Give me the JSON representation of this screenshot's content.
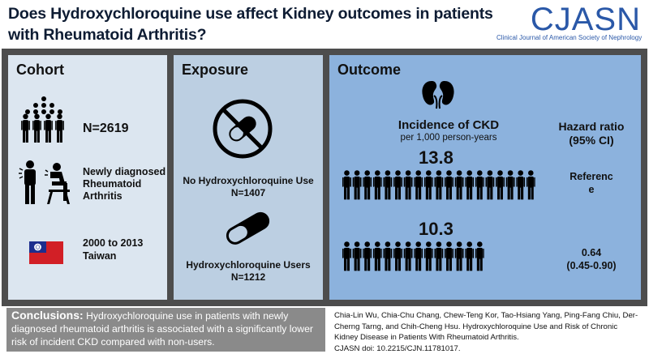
{
  "title": "Does Hydroxychloroquine use affect Kidney outcomes in patients with Rheumatoid Arthritis?",
  "logo": {
    "name": "CJASN",
    "subtitle": "Clinical Journal of American Society of Nephrology"
  },
  "cohort": {
    "heading": "Cohort",
    "n": "N=2619",
    "condition_lines": [
      "Newly diagnosed",
      "Rheumatoid",
      "Arthritis"
    ],
    "years": "2000 to 2013",
    "country": "Taiwan"
  },
  "exposure": {
    "heading": "Exposure",
    "group1": {
      "label": "No Hydroxychloroquine Use",
      "n": "N=1407"
    },
    "group2": {
      "label": "Hydroxychloroquine Users",
      "n": "N=1212"
    }
  },
  "outcome": {
    "heading": "Outcome",
    "incidence_title": "Incidence of CKD",
    "incidence_unit": "per 1,000 person-years",
    "hr_title_line1": "Hazard ratio",
    "hr_title_line2": "(95% CI)",
    "rows": [
      {
        "rate": "13.8",
        "hr_line1": "Referenc",
        "hr_line2": "e",
        "people": 19
      },
      {
        "rate": "10.3",
        "hr_line1": "0.64",
        "hr_line2": "(0.45-0.90)",
        "people": 14.5
      }
    ]
  },
  "conclusions": {
    "label": "Conclusions:",
    "text": "Hydroxychloroquine use in patients with newly diagnosed rheumatoid arthritis is associated with a significantly lower risk of incident CKD compared with non-users."
  },
  "citation": {
    "authors": "Chia-Lin Wu, Chia-Chu Chang, Chew-Teng Kor, Tao-Hsiang Yang, Ping-Fang Chiu, Der-Cherng Tarng, and Chih-Cheng Hsu.",
    "article": "Hydroxychloroquine Use and Risk of Chronic Kidney Disease in Patients With Rheumatoid Arthritis.",
    "doi": "CJASN doi: 10.2215/CJN.11781017."
  },
  "colors": {
    "title": "#0e1c33",
    "logo": "#2a58a8",
    "cohort_panel": "#dce6f0",
    "exposure_panel": "#bccfe2",
    "outcome_panel": "#8cb2dd",
    "frame": "#4d4d4d",
    "conclusion_box": "#8a8a8a",
    "flag_red": "#d21f26",
    "flag_blue": "#1d2e8e"
  }
}
